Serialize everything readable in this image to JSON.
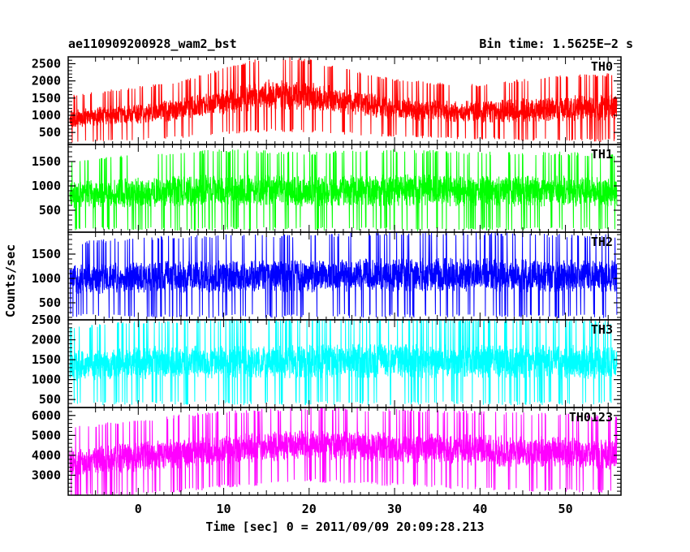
{
  "header": {
    "title": "ae110909200928_wam2_bst",
    "bin_time": "Bin time: 1.5625E−2 s"
  },
  "axes": {
    "xlabel": "Time [sec] 0 = 2011/09/09 20:09:28.213",
    "ylabel": "Counts/sec",
    "xlim": [
      -8.2,
      56.5
    ],
    "x_ticks": [
      0,
      10,
      20,
      30,
      40,
      50
    ]
  },
  "chart_data": {
    "type": "line",
    "x_start": -8.0,
    "x_end": 56.0,
    "bin_time_sec": 0.015625,
    "panels": [
      {
        "name": "TH0",
        "color": "#ff0000",
        "ylim": [
          150,
          2700
        ],
        "yticks": [
          500,
          1000,
          1500,
          2000,
          2500
        ],
        "envelope": {
          "t": [
            -8,
            0,
            5,
            10,
            15,
            20,
            25,
            30,
            35,
            40,
            45,
            50,
            56
          ],
          "low": [
            280,
            380,
            450,
            560,
            650,
            620,
            550,
            470,
            420,
            390,
            370,
            360,
            350
          ],
          "high": [
            1500,
            1750,
            1900,
            2250,
            2600,
            2500,
            2200,
            1950,
            1850,
            1800,
            1950,
            2050,
            2100
          ]
        }
      },
      {
        "name": "TH1",
        "color": "#00ff00",
        "ylim": [
          50,
          1850
        ],
        "yticks": [
          500,
          1000,
          1500
        ],
        "envelope": {
          "t": [
            -8,
            0,
            10,
            20,
            30,
            40,
            50,
            56
          ],
          "low": [
            180,
            180,
            190,
            180,
            180,
            180,
            180,
            180
          ],
          "high": [
            1450,
            1550,
            1650,
            1600,
            1650,
            1600,
            1600,
            1550
          ]
        }
      },
      {
        "name": "TH2",
        "color": "#0000ff",
        "ylim": [
          150,
          1950
        ],
        "yticks": [
          500,
          1000,
          1500
        ],
        "envelope": {
          "t": [
            -8,
            0,
            10,
            20,
            30,
            40,
            50,
            56
          ],
          "low": [
            300,
            290,
            300,
            300,
            300,
            300,
            300,
            300
          ],
          "high": [
            1650,
            1750,
            1800,
            1800,
            1850,
            1850,
            1800,
            1800
          ]
        }
      },
      {
        "name": "TH3",
        "color": "#00ffff",
        "ylim": [
          300,
          2500
        ],
        "yticks": [
          500,
          1000,
          1500,
          2000,
          2500
        ],
        "envelope": {
          "t": [
            -8,
            0,
            10,
            20,
            30,
            40,
            50,
            56
          ],
          "low": [
            480,
            500,
            500,
            500,
            500,
            500,
            500,
            500
          ],
          "high": [
            2200,
            2350,
            2400,
            2400,
            2450,
            2400,
            2400,
            2350
          ]
        }
      },
      {
        "name": "TH0123",
        "color": "#ff00ff",
        "ylim": [
          2000,
          6400
        ],
        "yticks": [
          3000,
          4000,
          5000,
          6000
        ],
        "envelope": {
          "t": [
            -8,
            0,
            5,
            10,
            20,
            30,
            40,
            50,
            56
          ],
          "low": [
            2100,
            2250,
            2400,
            2600,
            2900,
            2700,
            2500,
            2400,
            2350
          ],
          "high": [
            5200,
            5600,
            5800,
            6000,
            6200,
            6100,
            6000,
            5900,
            5700
          ]
        }
      }
    ]
  }
}
